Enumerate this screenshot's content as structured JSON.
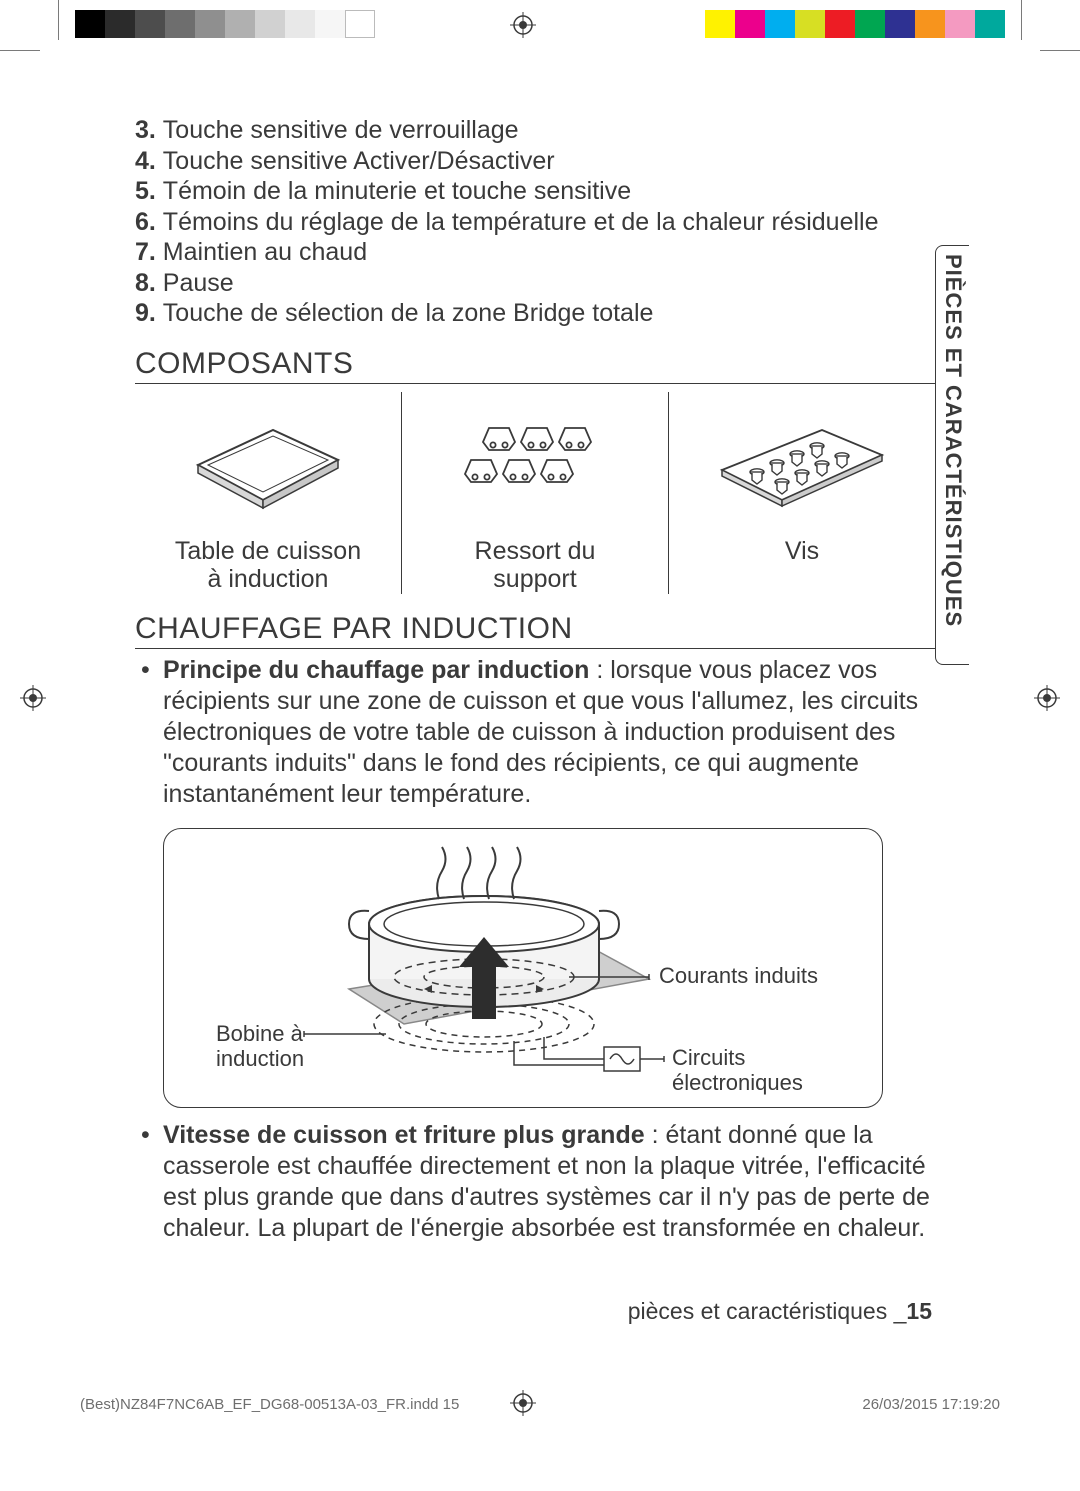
{
  "printerMarks": {
    "graySwatches": [
      "#000000",
      "#2b2b2b",
      "#4d4d4d",
      "#6e6e6e",
      "#8f8f8f",
      "#b0b0b0",
      "#d1d1d1",
      "#e8e8e8",
      "#f6f6f6",
      "#ffffff"
    ],
    "colorSwatches": [
      "#fff200",
      "#ec008c",
      "#00aeef",
      "#d7df23",
      "#ed1c24",
      "#00a651",
      "#2e3192",
      "#f7941d",
      "#f49ac1",
      "#00a99d"
    ]
  },
  "sideTab": "PIÈCES ET CARACTÉRISTIQUES",
  "numberedList": [
    {
      "n": "3.",
      "t": "Touche sensitive de verrouillage"
    },
    {
      "n": "4.",
      "t": "Touche sensitive Activer/Désactiver"
    },
    {
      "n": "5.",
      "t": "Témoin de la minuterie et touche sensitive"
    },
    {
      "n": "6.",
      "t": "Témoins du réglage de la température et de la chaleur résiduelle"
    },
    {
      "n": "7.",
      "t": "Maintien au chaud"
    },
    {
      "n": "8.",
      "t": "Pause"
    },
    {
      "n": "9.",
      "t": "Touche de sélection de la zone Bridge totale"
    }
  ],
  "sections": {
    "composants": "COMPOSANTS",
    "chauffage": "CHAUFFAGE PAR INDUCTION"
  },
  "components": [
    {
      "label": "Table de cuisson\nà induction"
    },
    {
      "label": "Ressort du\nsupport"
    },
    {
      "label": "Vis"
    }
  ],
  "bullet1": {
    "lead": "Principe du chauffage par induction",
    "rest": " : lorsque vous placez vos récipients sur une zone de cuisson et que vous l'allumez, les circuits électroniques de votre table de cuisson à induction produisent des \"courants induits\" dans le fond des récipients, ce qui augmente instantanément leur température."
  },
  "bullet2": {
    "lead": "Vitesse de cuisson et friture plus grande",
    "rest": " : étant donné que la casserole est chauffée directement et non la plaque vitrée, l'efficacité est plus grande que dans d'autres systèmes car il n'y pas de perte de chaleur. La plupart de l'énergie absorbée est transformée en chaleur."
  },
  "diagram": {
    "labels": {
      "courants": "Courants induits",
      "bobine": "Bobine à\ninduction",
      "circuits": "Circuits\nélectroniques"
    }
  },
  "footer": {
    "section": "pièces et caractéristiques _",
    "page": "15"
  },
  "indd": {
    "left": "(Best)NZ84F7NC6AB_EF_DG68-00513A-03_FR.indd   15",
    "right": "26/03/2015   17:19:20"
  },
  "colors": {
    "text": "#3a3a3a",
    "border": "#3a3a3a",
    "bg": "#ffffff"
  }
}
